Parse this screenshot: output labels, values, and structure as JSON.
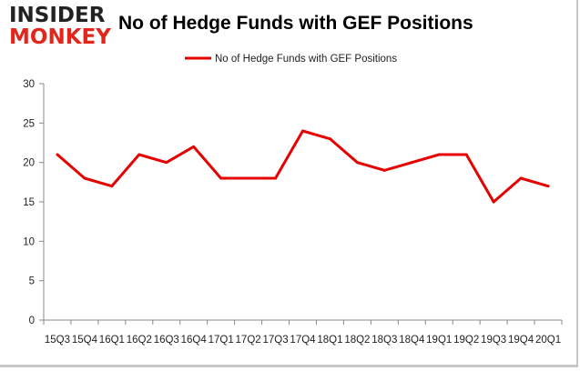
{
  "logo": {
    "word1": "INSIDER",
    "word2": "MONKEY"
  },
  "chart_data": {
    "type": "line",
    "title": "No of Hedge Funds with GEF Positions",
    "categories": [
      "15Q3",
      "15Q4",
      "16Q1",
      "16Q2",
      "16Q3",
      "16Q4",
      "17Q1",
      "17Q2",
      "17Q3",
      "17Q4",
      "18Q1",
      "18Q2",
      "18Q3",
      "18Q4",
      "19Q1",
      "19Q2",
      "19Q3",
      "19Q4",
      "20Q1"
    ],
    "series": [
      {
        "name": "No of Hedge Funds with GEF Positions",
        "color": "#e60000",
        "values": [
          21,
          18,
          17,
          21,
          20,
          22,
          18,
          18,
          18,
          24,
          23,
          20,
          19,
          20,
          21,
          21,
          15,
          18,
          17
        ]
      }
    ],
    "ylim": [
      0,
      30
    ],
    "yticks": [
      0,
      5,
      10,
      15,
      20,
      25,
      30
    ],
    "legend": "top-center",
    "grid": false
  }
}
